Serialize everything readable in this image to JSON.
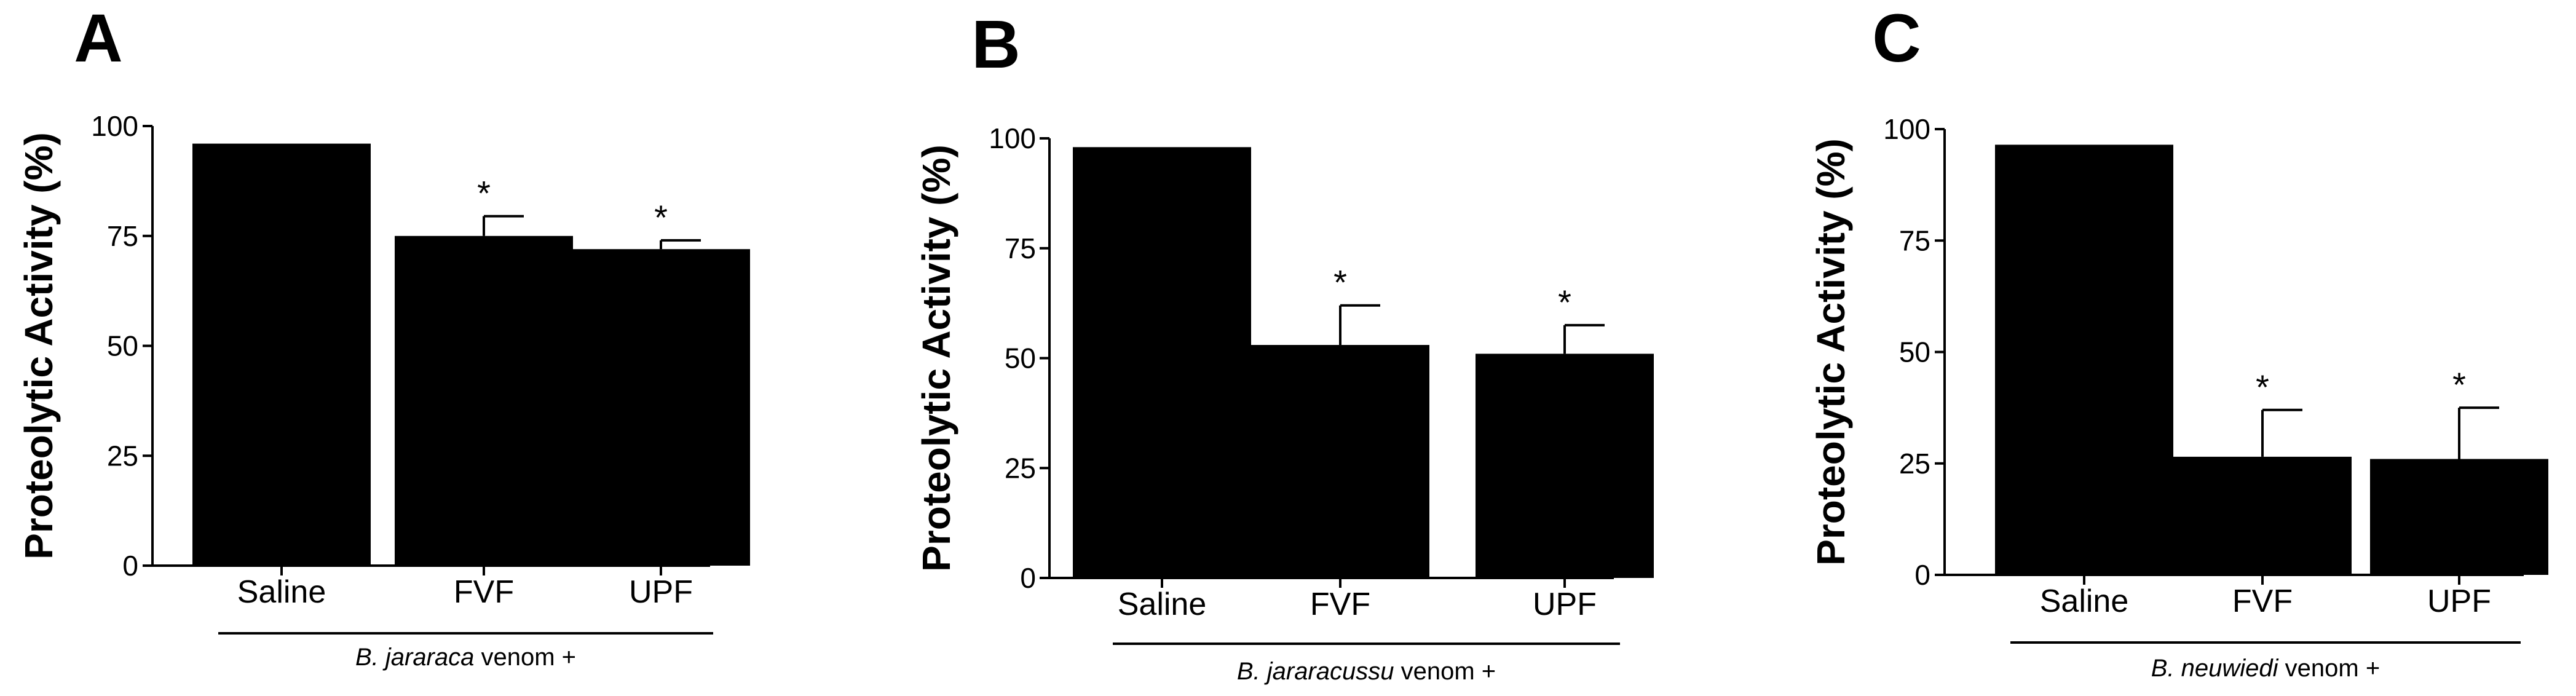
{
  "colors": {
    "bar": "#000000",
    "axis": "#000000",
    "background": "#ffffff"
  },
  "chart_data": [
    {
      "panel": "A",
      "type": "bar",
      "categories": [
        "Saline",
        "FVF",
        "UPF"
      ],
      "values": [
        96,
        75,
        72
      ],
      "errors": [
        0,
        4.5,
        2
      ],
      "significance": [
        "",
        "*",
        "*"
      ],
      "ylabel": "Proteolytic Activity (%)",
      "xlabel": "",
      "ylim": [
        0,
        100
      ],
      "yticks": [
        "0",
        "25",
        "50",
        "75",
        "100"
      ],
      "group_label_italic": "B. jararaca",
      "group_label_rest": " venom +"
    },
    {
      "panel": "B",
      "type": "bar",
      "categories": [
        "Saline",
        "FVF",
        "UPF"
      ],
      "values": [
        98,
        53,
        51
      ],
      "errors": [
        0,
        9,
        6.5
      ],
      "significance": [
        "",
        "*",
        "*"
      ],
      "ylabel": "Proteolytic Activity (%)",
      "xlabel": "",
      "ylim": [
        0,
        100
      ],
      "yticks": [
        "0",
        "25",
        "50",
        "75",
        "100"
      ],
      "group_label_italic": "B. jararacussu",
      "group_label_rest": " venom +"
    },
    {
      "panel": "C",
      "type": "bar",
      "categories": [
        "Saline",
        "FVF",
        "UPF"
      ],
      "values": [
        96.5,
        26.5,
        26
      ],
      "errors": [
        0,
        10.5,
        11.5
      ],
      "significance": [
        "",
        "*",
        "*"
      ],
      "ylabel": "Proteolytic Activity (%)",
      "xlabel": "",
      "ylim": [
        0,
        100
      ],
      "yticks": [
        "0",
        "25",
        "50",
        "75",
        "100"
      ],
      "group_label_italic": "B. neuwiedi",
      "group_label_rest": " venom +"
    }
  ]
}
